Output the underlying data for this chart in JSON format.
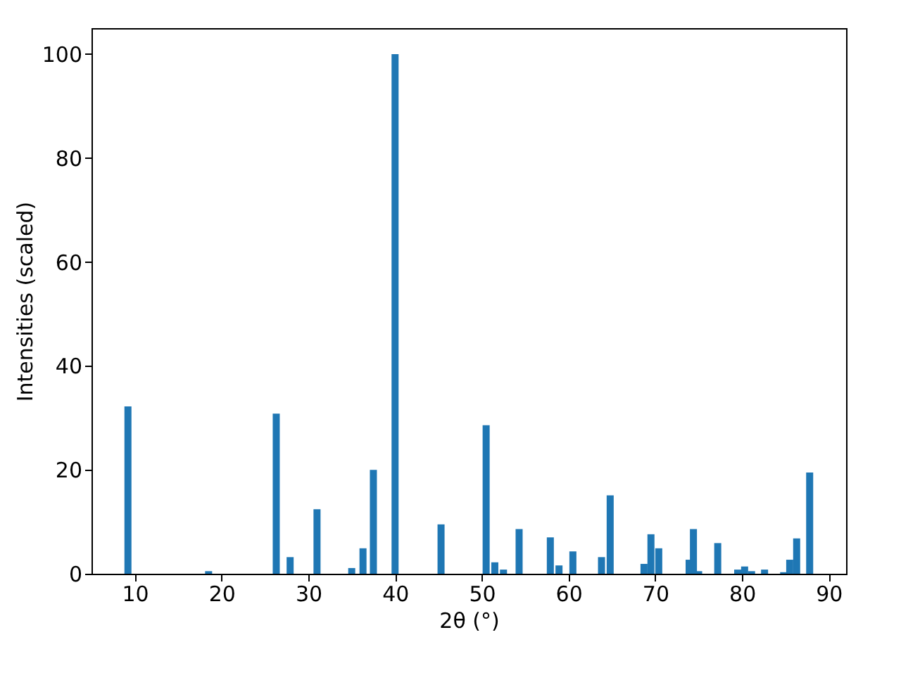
{
  "chart_data": {
    "type": "bar",
    "xlabel": "2θ (°)",
    "ylabel": "Intensities (scaled)",
    "x": [
      9.2,
      18.5,
      26.3,
      27.9,
      31.0,
      35.0,
      36.3,
      37.5,
      40.0,
      45.3,
      50.5,
      51.5,
      52.5,
      54.3,
      57.9,
      58.9,
      60.5,
      63.8,
      64.8,
      68.7,
      69.5,
      70.4,
      73.9,
      74.4,
      75.0,
      77.2,
      79.5,
      80.3,
      81.1,
      82.6,
      84.8,
      85.5,
      86.3,
      87.8
    ],
    "values": [
      32.2,
      0.5,
      30.8,
      3.2,
      12.4,
      1.1,
      4.9,
      20.0,
      100,
      9.5,
      28.6,
      2.2,
      0.8,
      8.6,
      7.0,
      1.6,
      4.3,
      3.2,
      15.1,
      1.9,
      7.6,
      4.9,
      2.7,
      8.6,
      0.5,
      5.9,
      0.8,
      1.4,
      0.5,
      0.8,
      0.3,
      2.7,
      6.8,
      19.5
    ],
    "color": "#1f77b4",
    "xlim": [
      5,
      92
    ],
    "xticks": [
      10,
      20,
      30,
      40,
      50,
      60,
      70,
      80,
      90
    ],
    "ylim": [
      0,
      105
    ],
    "yticks": [
      0,
      20,
      40,
      60,
      80,
      100
    ],
    "grid": false
  }
}
